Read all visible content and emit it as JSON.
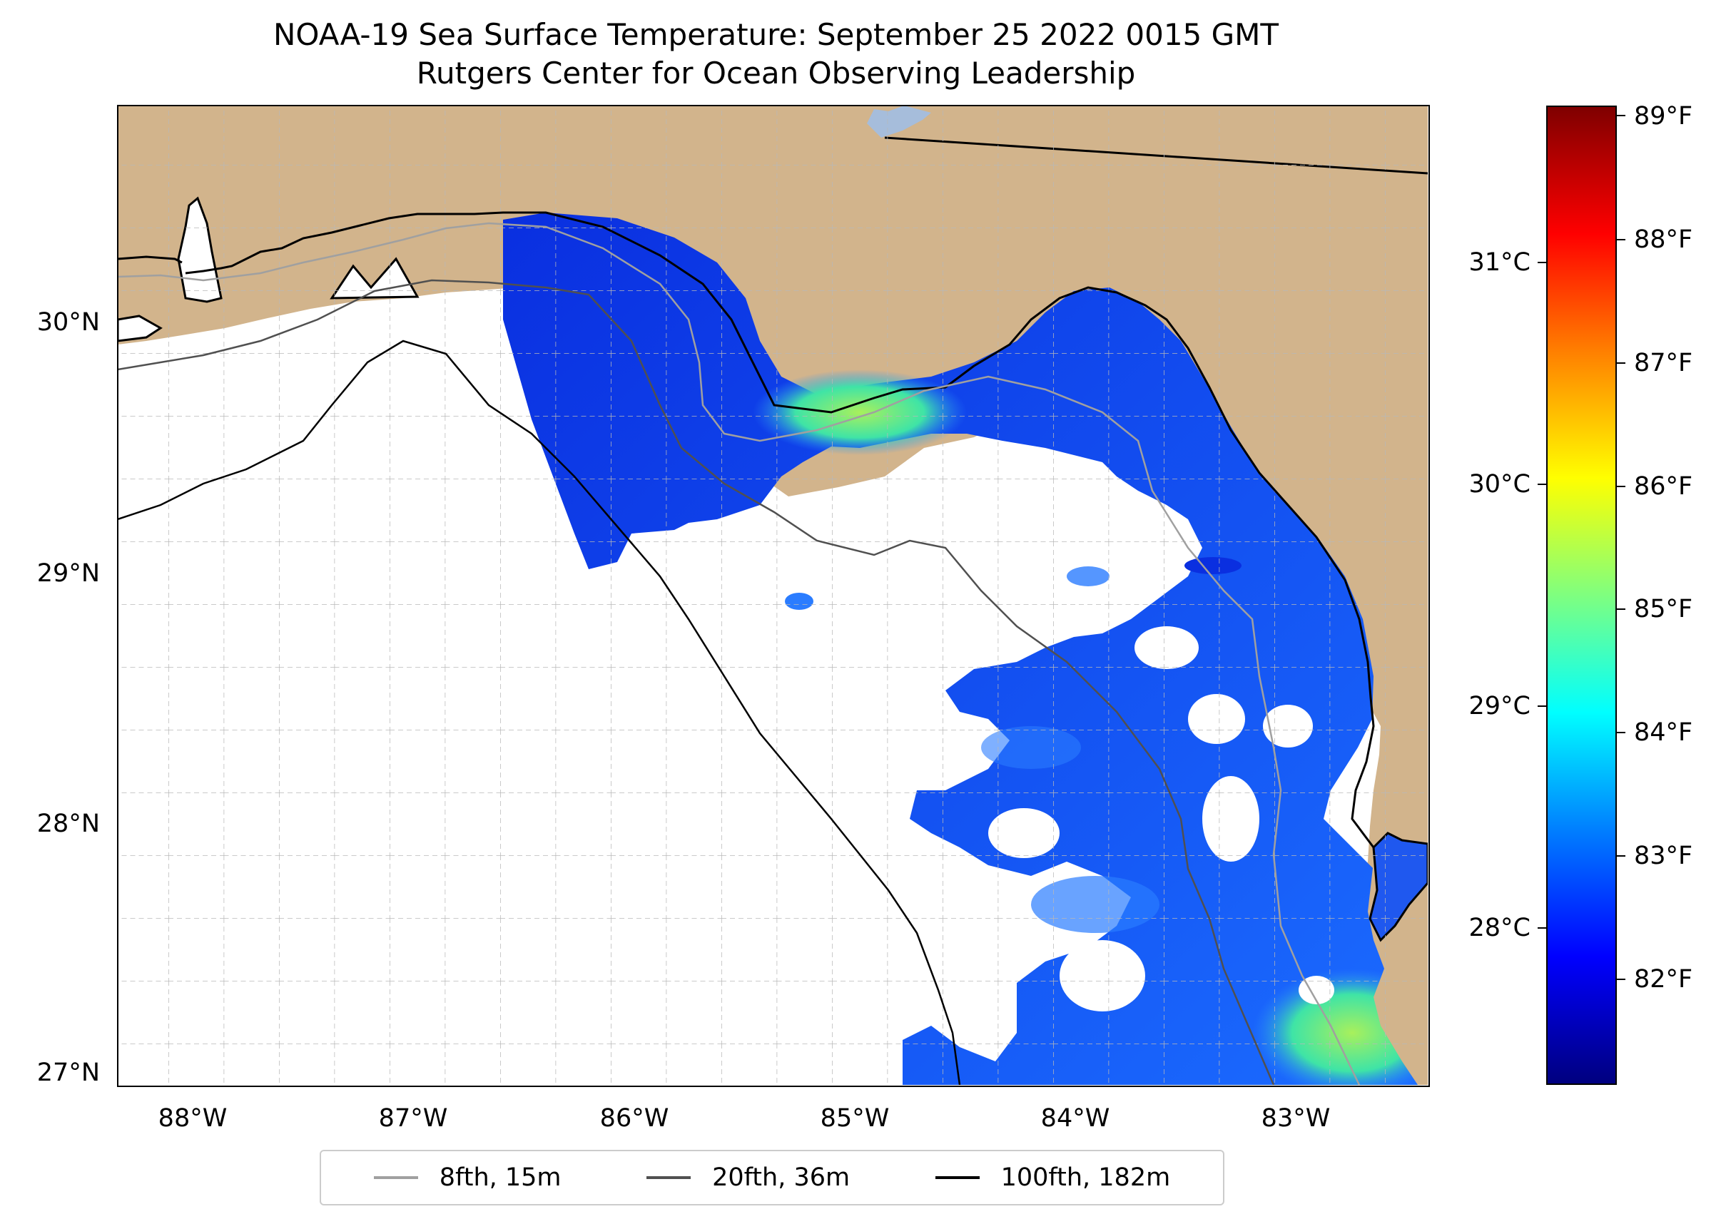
{
  "title": "NOAA-19 Sea Surface Temperature: September 25 2022 0015 GMT",
  "subtitle": "Rutgers Center for Ocean Observing Leadership",
  "map": {
    "latitude_labels": [
      "30°N",
      "29°N",
      "28°N",
      "27°N"
    ],
    "longitude_labels": [
      "88°W",
      "87°W",
      "86°W",
      "85°W",
      "84°W",
      "83°W"
    ],
    "colors": {
      "land": "#d2b48c",
      "ocean": "#ffffff",
      "lake": "#a6bddb",
      "gridline": "#b0b0b0",
      "coastline": "#000000"
    },
    "gridlines": true
  },
  "colorbar": {
    "colormap": "jet",
    "fahrenheit_labels": [
      "89°F",
      "88°F",
      "87°F",
      "86°F",
      "85°F",
      "84°F",
      "83°F",
      "82°F"
    ],
    "celsius_labels": [
      "31°C",
      "30°C",
      "29°C",
      "28°C"
    ]
  },
  "legend": {
    "placement": "bottom-center",
    "items": [
      {
        "label": "8fth, 15m",
        "color": "#a0a0a0"
      },
      {
        "label": "20fth, 36m",
        "color": "#505050"
      },
      {
        "label": "100fth, 182m",
        "color": "#000000"
      }
    ]
  }
}
